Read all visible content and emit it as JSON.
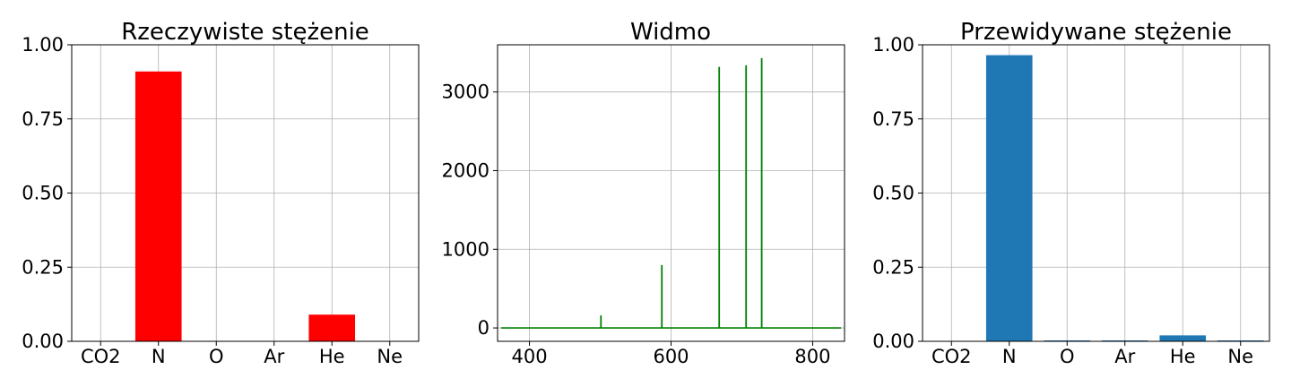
{
  "figure": {
    "background": "#ffffff"
  },
  "chart_data": [
    {
      "type": "bar",
      "title": "Rzeczywiste stężenie",
      "categories": [
        "CO2",
        "N",
        "O",
        "Ar",
        "He",
        "Ne"
      ],
      "values": [
        0.0,
        0.91,
        0.0,
        0.0,
        0.09,
        0.0
      ],
      "ylim": [
        0,
        1
      ],
      "yticks": [
        0.0,
        0.25,
        0.5,
        0.75,
        1.0
      ],
      "ytick_labels": [
        "0.00",
        "0.25",
        "0.50",
        "0.75",
        "1.00"
      ],
      "color": "#ff0000",
      "grid": true
    },
    {
      "type": "line",
      "title": "Widmo",
      "xlim": [
        355,
        845
      ],
      "ylim": [
        -170,
        3600
      ],
      "xticks": [
        400,
        600,
        800
      ],
      "xtick_labels": [
        "400",
        "600",
        "800"
      ],
      "yticks": [
        0,
        1000,
        2000,
        3000
      ],
      "ytick_labels": [
        "0",
        "1000",
        "2000",
        "3000"
      ],
      "baseline": [
        360,
        840
      ],
      "peaks": [
        {
          "x": 501,
          "y": 160
        },
        {
          "x": 587,
          "y": 800
        },
        {
          "x": 668,
          "y": 3320
        },
        {
          "x": 706,
          "y": 3340
        },
        {
          "x": 728,
          "y": 3430
        }
      ],
      "color": "#008000",
      "grid": true
    },
    {
      "type": "bar",
      "title": "Przewidywane stężenie",
      "categories": [
        "CO2",
        "N",
        "O",
        "Ar",
        "He",
        "Ne"
      ],
      "values": [
        0.0,
        0.965,
        0.003,
        0.003,
        0.02,
        0.003
      ],
      "ylim": [
        0,
        1
      ],
      "yticks": [
        0.0,
        0.25,
        0.5,
        0.75,
        1.0
      ],
      "ytick_labels": [
        "0.00",
        "0.25",
        "0.50",
        "0.75",
        "1.00"
      ],
      "color": "#1f77b4",
      "grid": true
    }
  ]
}
